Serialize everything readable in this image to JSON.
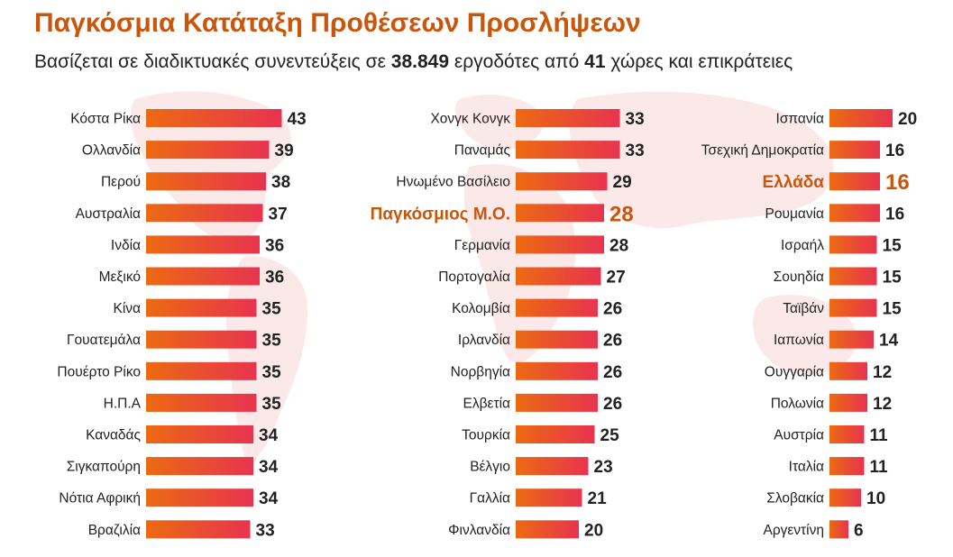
{
  "title": "Παγκόσμια Κατάταξη Προθέσεων Προσλήψεων",
  "subtitle": {
    "part1": "Βασίζεται σε διαδικτυακές συνεντεύξεις σε ",
    "employers": "38.849",
    "part2": " εργοδότες από ",
    "countries": "41",
    "part3": " χώρες και επικράτειες"
  },
  "colors": {
    "title": "#c9560a",
    "highlight": "#c9560a",
    "bar_start": "#ec6a12",
    "bar_end": "#e8334f",
    "text": "#222222"
  },
  "chart_data": {
    "type": "bar",
    "orientation": "horizontal",
    "value_range": [
      0,
      43
    ],
    "columns": [
      {
        "items": [
          {
            "category": "Κόστα Ρίκα",
            "value": 43
          },
          {
            "category": "Ολλανδία",
            "value": 39
          },
          {
            "category": "Περού",
            "value": 38
          },
          {
            "category": "Αυστραλία",
            "value": 37
          },
          {
            "category": "Ινδία",
            "value": 36
          },
          {
            "category": "Μεξικό",
            "value": 36
          },
          {
            "category": "Κίνα",
            "value": 35
          },
          {
            "category": "Γουατεμάλα",
            "value": 35
          },
          {
            "category": "Πουέρτο Ρίκο",
            "value": 35
          },
          {
            "category": "Η.Π.Α",
            "value": 35
          },
          {
            "category": "Καναδάς",
            "value": 34
          },
          {
            "category": "Σιγκαπούρη",
            "value": 34
          },
          {
            "category": "Νότια Αφρική",
            "value": 34
          },
          {
            "category": "Βραζιλία",
            "value": 33
          }
        ]
      },
      {
        "items": [
          {
            "category": "Χονγκ Κονγκ",
            "value": 33
          },
          {
            "category": "Παναμάς",
            "value": 33
          },
          {
            "category": "Ηνωμένο Βασίλειο",
            "value": 29
          },
          {
            "category": "Παγκόσμιος Μ.Ο.",
            "value": 28,
            "highlight": true
          },
          {
            "category": "Γερμανία",
            "value": 28
          },
          {
            "category": "Πορτογαλία",
            "value": 27
          },
          {
            "category": "Κολομβία",
            "value": 26
          },
          {
            "category": "Ιρλανδία",
            "value": 26
          },
          {
            "category": "Νορβηγία",
            "value": 26
          },
          {
            "category": "Ελβετία",
            "value": 26
          },
          {
            "category": "Τουρκία",
            "value": 25
          },
          {
            "category": "Βέλγιο",
            "value": 23
          },
          {
            "category": "Γαλλία",
            "value": 21
          },
          {
            "category": "Φινλανδία",
            "value": 20
          }
        ]
      },
      {
        "items": [
          {
            "category": "Ισπανία",
            "value": 20
          },
          {
            "category": "Τσεχική Δημοκρατία",
            "value": 16
          },
          {
            "category": "Ελλάδα",
            "value": 16,
            "highlight": true
          },
          {
            "category": "Ρουμανία",
            "value": 16
          },
          {
            "category": "Ισραήλ",
            "value": 15
          },
          {
            "category": "Σουηδία",
            "value": 15
          },
          {
            "category": "Ταϊβάν",
            "value": 15
          },
          {
            "category": "Ιαπωνία",
            "value": 14
          },
          {
            "category": "Ουγγαρία",
            "value": 12
          },
          {
            "category": "Πολωνία",
            "value": 12
          },
          {
            "category": "Αυστρία",
            "value": 11
          },
          {
            "category": "Ιταλία",
            "value": 11
          },
          {
            "category": "Σλοβακία",
            "value": 10
          },
          {
            "category": "Αργεντίνη",
            "value": 6
          }
        ]
      }
    ]
  }
}
